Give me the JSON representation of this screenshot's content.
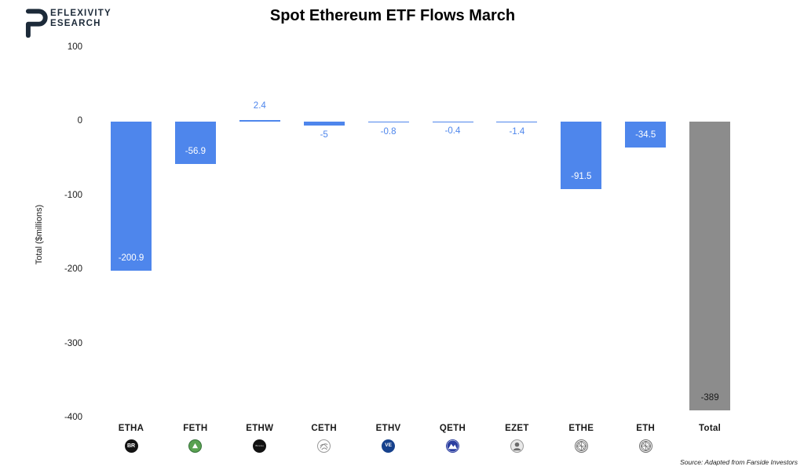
{
  "logo": {
    "big_letter": "R",
    "line1": "EFLEXIVITY",
    "line2": "ESEARCH",
    "color": "#1c2a39"
  },
  "title": "Spot Ethereum ETF Flows March",
  "source": "Source: Adapted from Farside Investors",
  "chart_data": {
    "type": "bar",
    "title": "Spot Ethereum ETF Flows March",
    "xlabel": "",
    "ylabel": "Total ($millions)",
    "ylim": [
      -400,
      100
    ],
    "yticks": [
      100,
      0,
      -100,
      -200,
      -300,
      -400
    ],
    "grid": false,
    "legend": false,
    "flow_color": "#4e86ec",
    "total_color": "#8c8c8c",
    "categories": [
      "ETHA",
      "FETH",
      "ETHW",
      "CETH",
      "ETHV",
      "QETH",
      "EZET",
      "ETHE",
      "ETH",
      "Total"
    ],
    "values": [
      -200.9,
      -56.9,
      2.4,
      -5,
      -0.8,
      -0.4,
      -1.4,
      -91.5,
      -34.5,
      -389
    ],
    "bars": [
      {
        "category": "ETHA",
        "value": -200.9,
        "label": "-200.9",
        "label_pos": "inside",
        "label_color": "#ffffff",
        "color": "#4e86ec",
        "icon": "blackrock-icon",
        "icon_text": "BR"
      },
      {
        "category": "FETH",
        "value": -56.9,
        "label": "-56.9",
        "label_pos": "inside",
        "label_color": "#ffffff",
        "color": "#4e86ec",
        "icon": "fidelity-icon",
        "icon_text": ""
      },
      {
        "category": "ETHW",
        "value": 2.4,
        "label": "2.4",
        "label_pos": "above",
        "label_color": "#4e86ec",
        "color": "#4e86ec",
        "icon": "bitwise-icon",
        "icon_text": "Bitwise"
      },
      {
        "category": "CETH",
        "value": -5,
        "label": "-5",
        "label_pos": "below",
        "label_color": "#4e86ec",
        "color": "#4e86ec",
        "icon": "21shares-icon",
        "icon_text": ""
      },
      {
        "category": "ETHV",
        "value": -0.8,
        "label": "-0.8",
        "label_pos": "below",
        "label_color": "#4e86ec",
        "color": "#4e86ec",
        "icon": "vaneck-icon",
        "icon_text": "VE"
      },
      {
        "category": "QETH",
        "value": -0.4,
        "label": "-0.4",
        "label_pos": "below",
        "label_color": "#4e86ec",
        "color": "#4e86ec",
        "icon": "invesco-icon",
        "icon_text": ""
      },
      {
        "category": "EZET",
        "value": -1.4,
        "label": "-1.4",
        "label_pos": "below",
        "label_color": "#4e86ec",
        "color": "#4e86ec",
        "icon": "franklin-icon",
        "icon_text": ""
      },
      {
        "category": "ETHE",
        "value": -91.5,
        "label": "-91.5",
        "label_pos": "inside",
        "label_color": "#ffffff",
        "color": "#4e86ec",
        "icon": "grayscale-icon",
        "icon_text": ""
      },
      {
        "category": "ETH",
        "value": -34.5,
        "label": "-34.5",
        "label_pos": "inside",
        "label_color": "#ffffff",
        "color": "#4e86ec",
        "icon": "grayscale-icon",
        "icon_text": ""
      },
      {
        "category": "Total",
        "value": -389,
        "label": "-389",
        "label_pos": "inside",
        "label_color": "#1a1a1a",
        "color": "#8c8c8c",
        "icon": null,
        "icon_text": ""
      }
    ]
  }
}
